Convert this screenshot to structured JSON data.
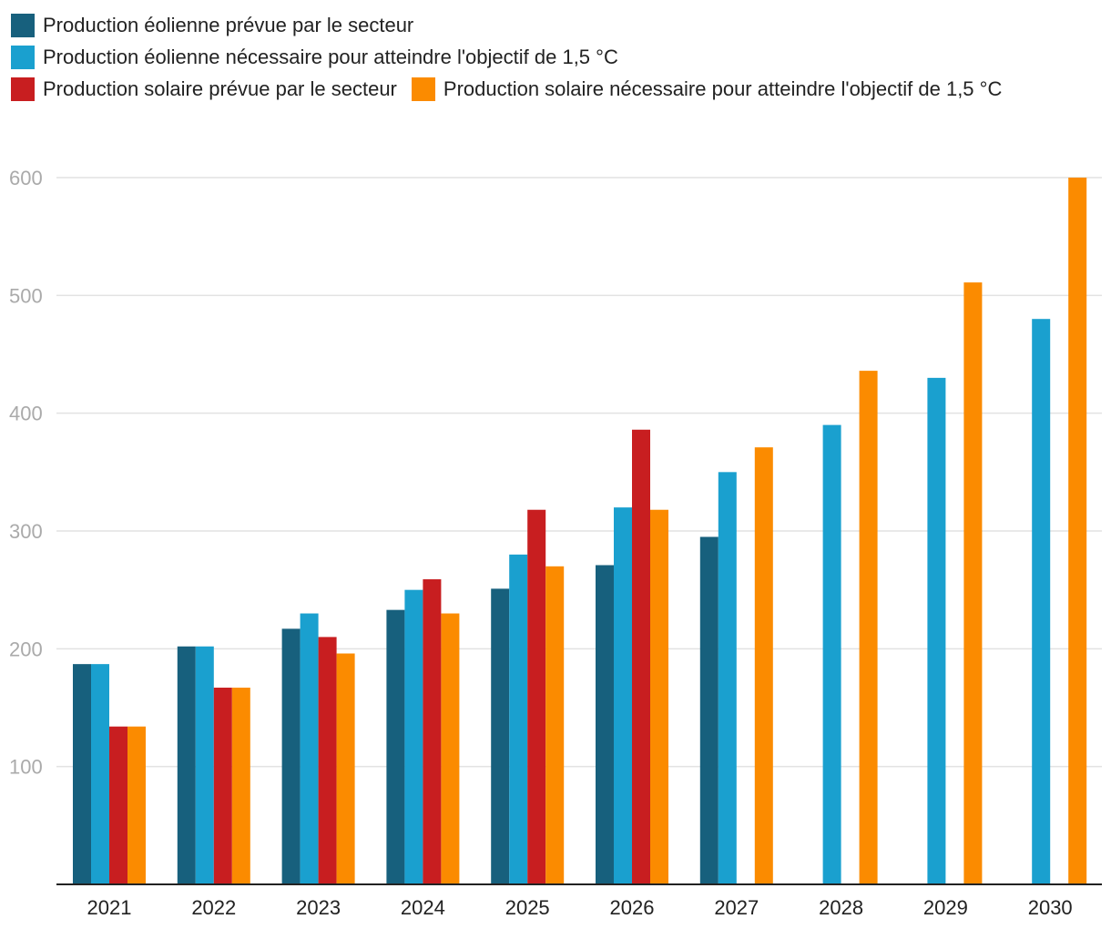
{
  "chart_data": {
    "type": "bar",
    "title": "",
    "xlabel": "",
    "ylabel": "",
    "ylim": [
      0,
      600
    ],
    "yticks": [
      100,
      200,
      300,
      400,
      500,
      600
    ],
    "grid": true,
    "legend_position": "top-left",
    "categories": [
      "2021",
      "2022",
      "2023",
      "2024",
      "2025",
      "2026",
      "2027",
      "2028",
      "2029",
      "2030"
    ],
    "series": [
      {
        "name": "Production éolienne prévue par le secteur",
        "color": "#17607d",
        "values": [
          187,
          202,
          217,
          233,
          251,
          271,
          295,
          null,
          null,
          null
        ]
      },
      {
        "name": "Production éolienne nécessaire pour atteindre l'objectif de 1,5 °C",
        "color": "#1aa0cf",
        "values": [
          187,
          202,
          230,
          250,
          280,
          320,
          350,
          390,
          430,
          480
        ]
      },
      {
        "name": "Production solaire prévue par le secteur",
        "color": "#c81e20",
        "values": [
          134,
          167,
          210,
          259,
          318,
          386,
          null,
          null,
          null,
          null
        ]
      },
      {
        "name": "Production solaire nécessaire pour atteindre l'objectif de 1,5 °C",
        "color": "#fb8b00",
        "values": [
          134,
          167,
          196,
          230,
          270,
          318,
          371,
          436,
          511,
          600
        ]
      }
    ]
  }
}
